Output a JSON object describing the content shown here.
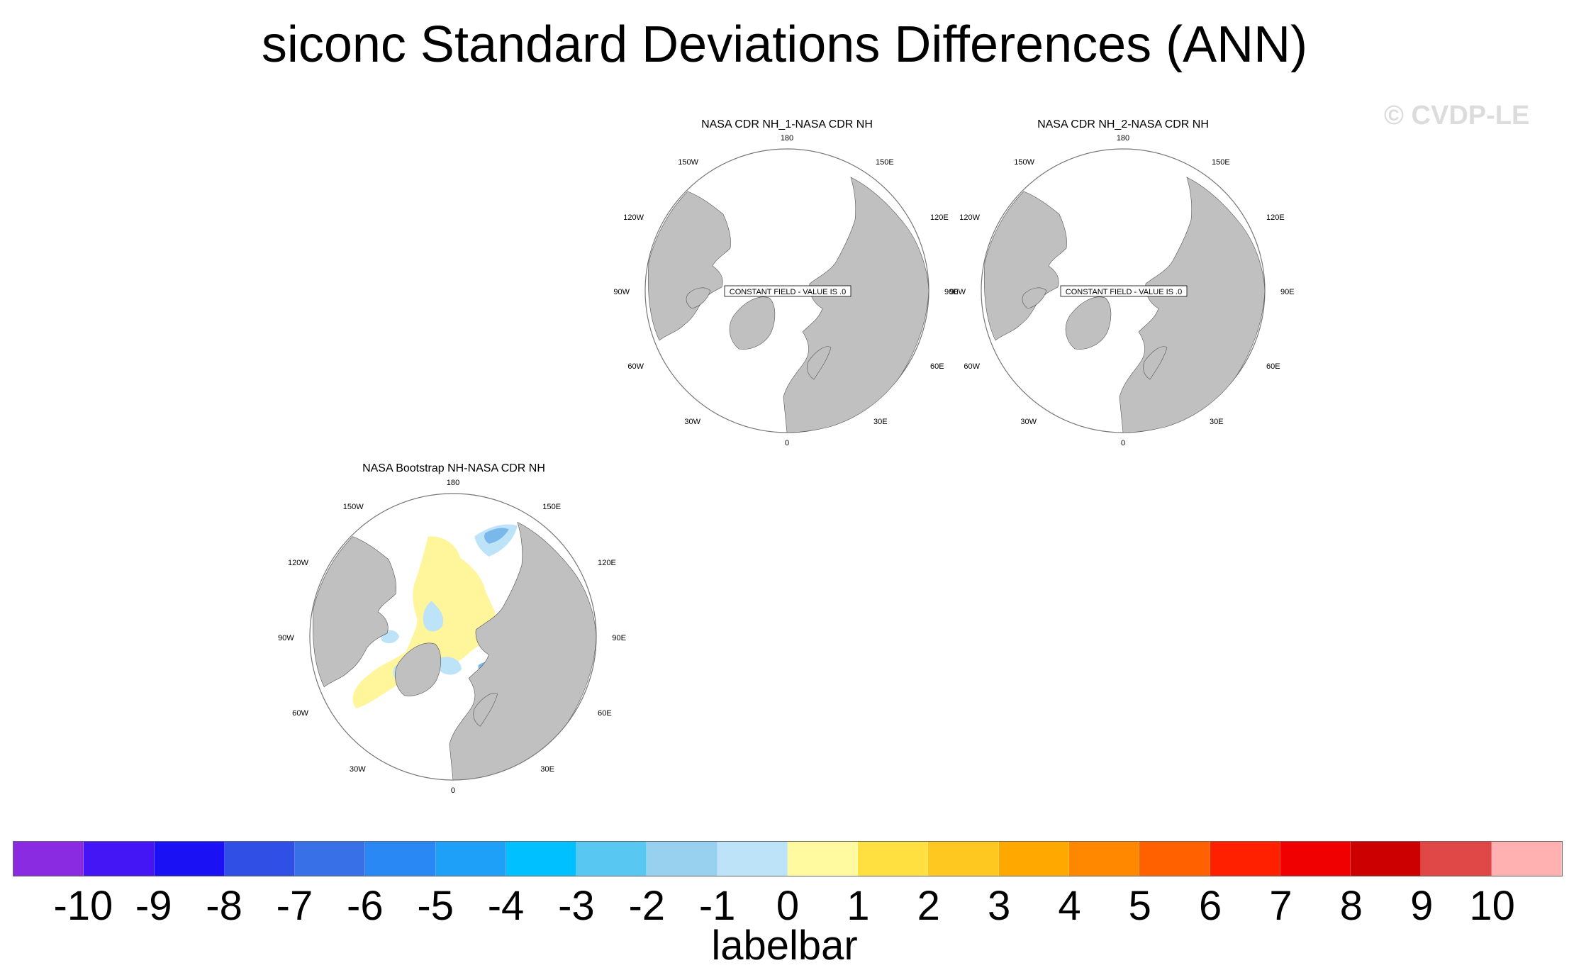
{
  "title": "siconc Standard Deviations Differences (ANN)",
  "watermark": "© CVDP-LE",
  "panels": [
    {
      "title": "NASA CDR NH_1-NASA CDR NH",
      "constant_field_label": "CONSTANT FIELD - VALUE IS .0"
    },
    {
      "title": "NASA CDR NH_2-NASA CDR NH",
      "constant_field_label": "CONSTANT FIELD - VALUE IS .0"
    },
    {
      "title": "NASA Bootstrap NH-NASA CDR NH",
      "constant_field_label": ""
    }
  ],
  "longitude_labels": {
    "top": "180",
    "bottom": "0",
    "upper_left": "150W",
    "upper_right": "150E",
    "mid_upper_left": "120W",
    "mid_upper_right": "120E",
    "left": "90W",
    "right": "90E",
    "mid_lower_left": "60W",
    "mid_lower_right": "60E",
    "lower_left": "30W",
    "lower_right": "30E"
  },
  "labelbar": {
    "title": "labelbar",
    "tick_labels": [
      "-10",
      "-9",
      "-8",
      "-7",
      "-6",
      "-5",
      "-4",
      "-3",
      "-2",
      "-1",
      "0",
      "1",
      "2",
      "3",
      "4",
      "5",
      "6",
      "7",
      "8",
      "9",
      "10"
    ],
    "colors": [
      "#8a2be2",
      "#4416f5",
      "#1a12f5",
      "#3050e5",
      "#3870e8",
      "#2a88f5",
      "#1ea0f8",
      "#00c0ff",
      "#58c8f2",
      "#98d0f0",
      "#bde3f8",
      "#fffaa0",
      "#ffe040",
      "#ffc820",
      "#ffa800",
      "#ff8800",
      "#ff6000",
      "#ff2000",
      "#f00000",
      "#cc0000",
      "#e04848",
      "#ffb0b0"
    ]
  },
  "map_colors": {
    "land": "#c0c0c0",
    "ocean": "#ffffff",
    "diff_positive": "#fff59a",
    "diff_negative_weak": "#bde3f8",
    "diff_negative_strong": "#7ab8ec"
  }
}
